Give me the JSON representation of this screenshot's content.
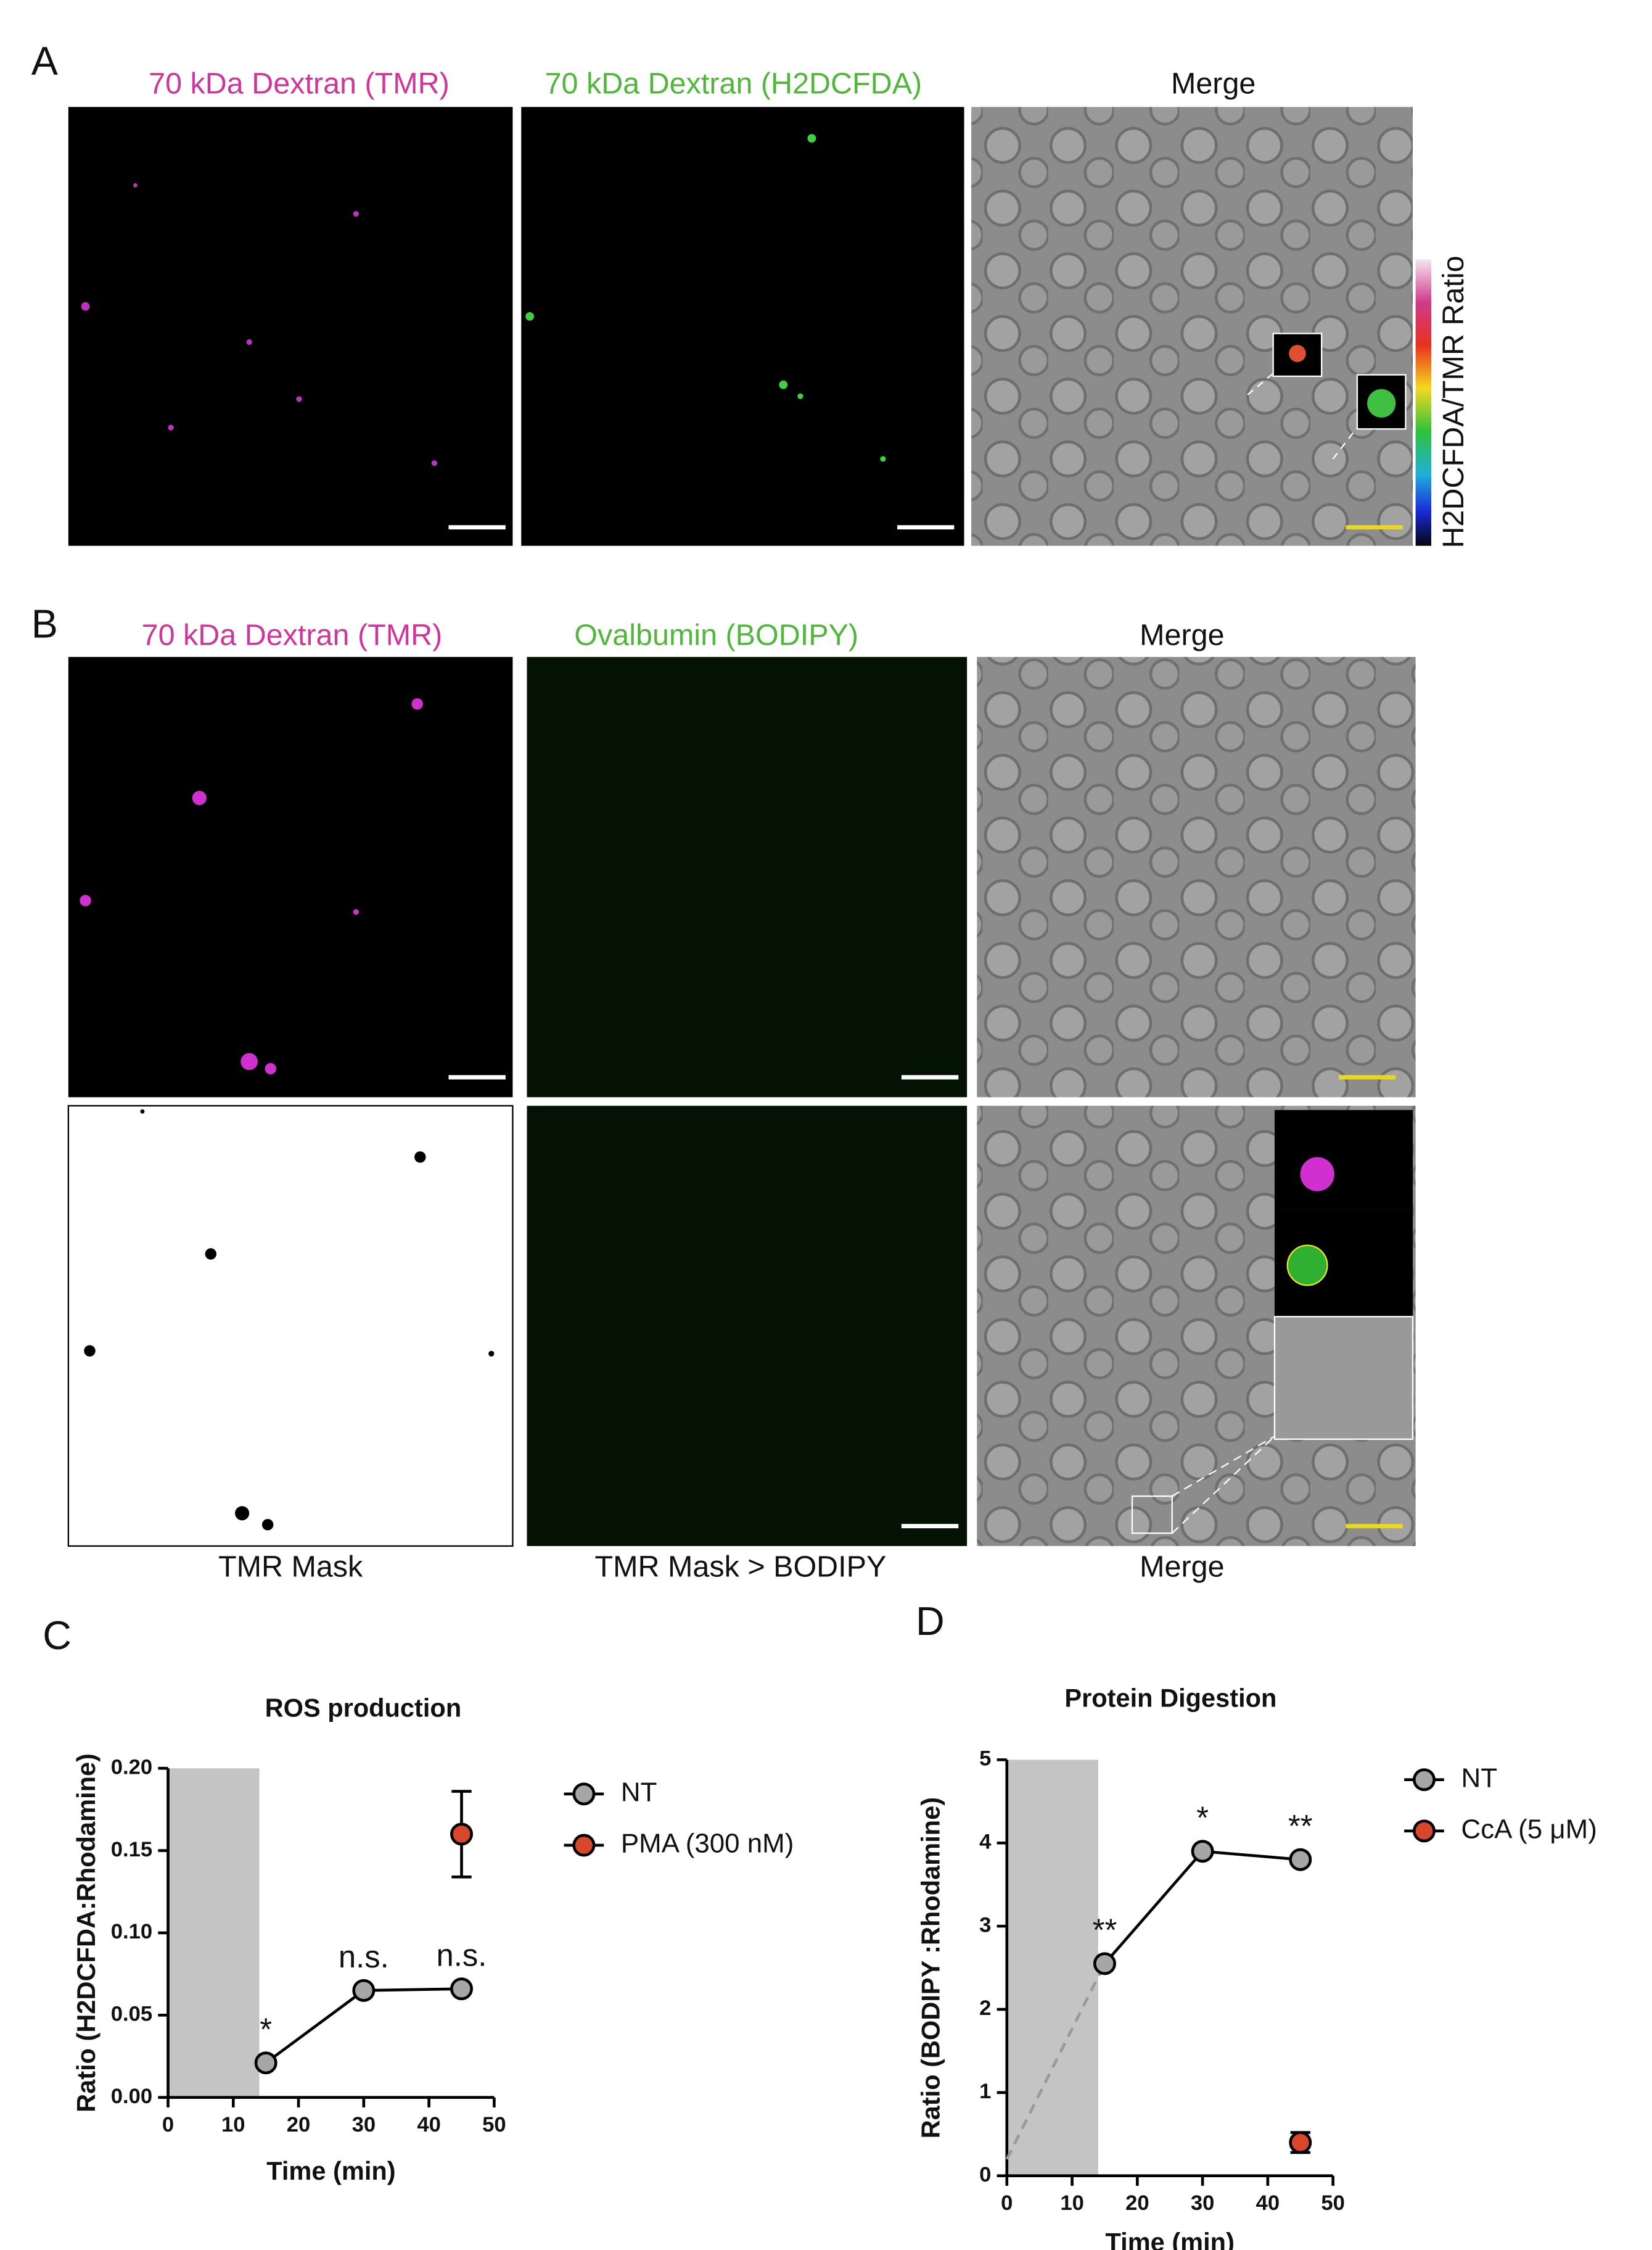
{
  "panel_a": {
    "label": "A",
    "titles": [
      "70 kDa Dextran (TMR)",
      "70 kDa Dextran (H2DCFDA)",
      "Merge"
    ],
    "colorbar_label": "H2DCFDA/TMR Ratio"
  },
  "panel_b": {
    "label": "B",
    "titles": [
      "70 kDa Dextran (TMR)",
      "Ovalbumin (BODIPY)",
      "Merge"
    ],
    "captions": [
      "TMR Mask",
      "TMR Mask > BODIPY",
      "Merge"
    ]
  },
  "chart_data": [
    {
      "type": "line",
      "panel_label": "C",
      "title": "ROS production",
      "y_label": "Ratio (H2DCFDA:Rhodamine)",
      "x_label": "Time (min)",
      "xlim": [
        0,
        50
      ],
      "xticks": [
        0,
        10,
        20,
        30,
        40,
        50
      ],
      "ylim": [
        0,
        0.2
      ],
      "yticks": [
        {
          "value": 0,
          "label": "0.00"
        },
        {
          "value": 0.05,
          "label": "0.05"
        },
        {
          "value": 0.1,
          "label": "0.10"
        },
        {
          "value": 0.15,
          "label": "0.15"
        },
        {
          "value": 0.2,
          "label": "0.20"
        }
      ],
      "shade_xlim": [
        0,
        14
      ],
      "series": [
        {
          "name": "NT",
          "color": "#a6a6a6",
          "connected": true,
          "x": [
            15,
            30,
            45
          ],
          "values": [
            0.021,
            0.065,
            0.066
          ],
          "point_labels": [
            "*",
            "n.s.",
            "n.s."
          ]
        },
        {
          "name": "PMA (300 nM)",
          "color": "#d9472b",
          "connected": false,
          "x": [
            45
          ],
          "values": [
            0.16
          ],
          "errors": [
            0.026
          ]
        }
      ]
    },
    {
      "type": "line",
      "panel_label": "D",
      "title": "Protein Digestion",
      "y_label": "Ratio (BODIPY :Rhodamine)",
      "x_label": "Time (min)",
      "xlim": [
        0,
        50
      ],
      "xticks": [
        0,
        10,
        20,
        30,
        40,
        50
      ],
      "ylim": [
        0,
        5
      ],
      "yticks": [
        0,
        1,
        2,
        3,
        4,
        5
      ],
      "shade_xlim": [
        0,
        14
      ],
      "trend_line": {
        "x": [
          0,
          15
        ],
        "values": [
          0.2,
          2.55
        ],
        "color": "#999999"
      },
      "series": [
        {
          "name": "NT",
          "color": "#a6a6a6",
          "connected": true,
          "x": [
            15,
            30,
            45
          ],
          "values": [
            2.55,
            3.9,
            3.8
          ],
          "point_labels": [
            "**",
            "*",
            "**"
          ]
        },
        {
          "name": "CcA (5 μM)",
          "color": "#d9472b",
          "connected": false,
          "x": [
            45
          ],
          "values": [
            0.4
          ],
          "errors": [
            0.12
          ]
        }
      ]
    }
  ]
}
